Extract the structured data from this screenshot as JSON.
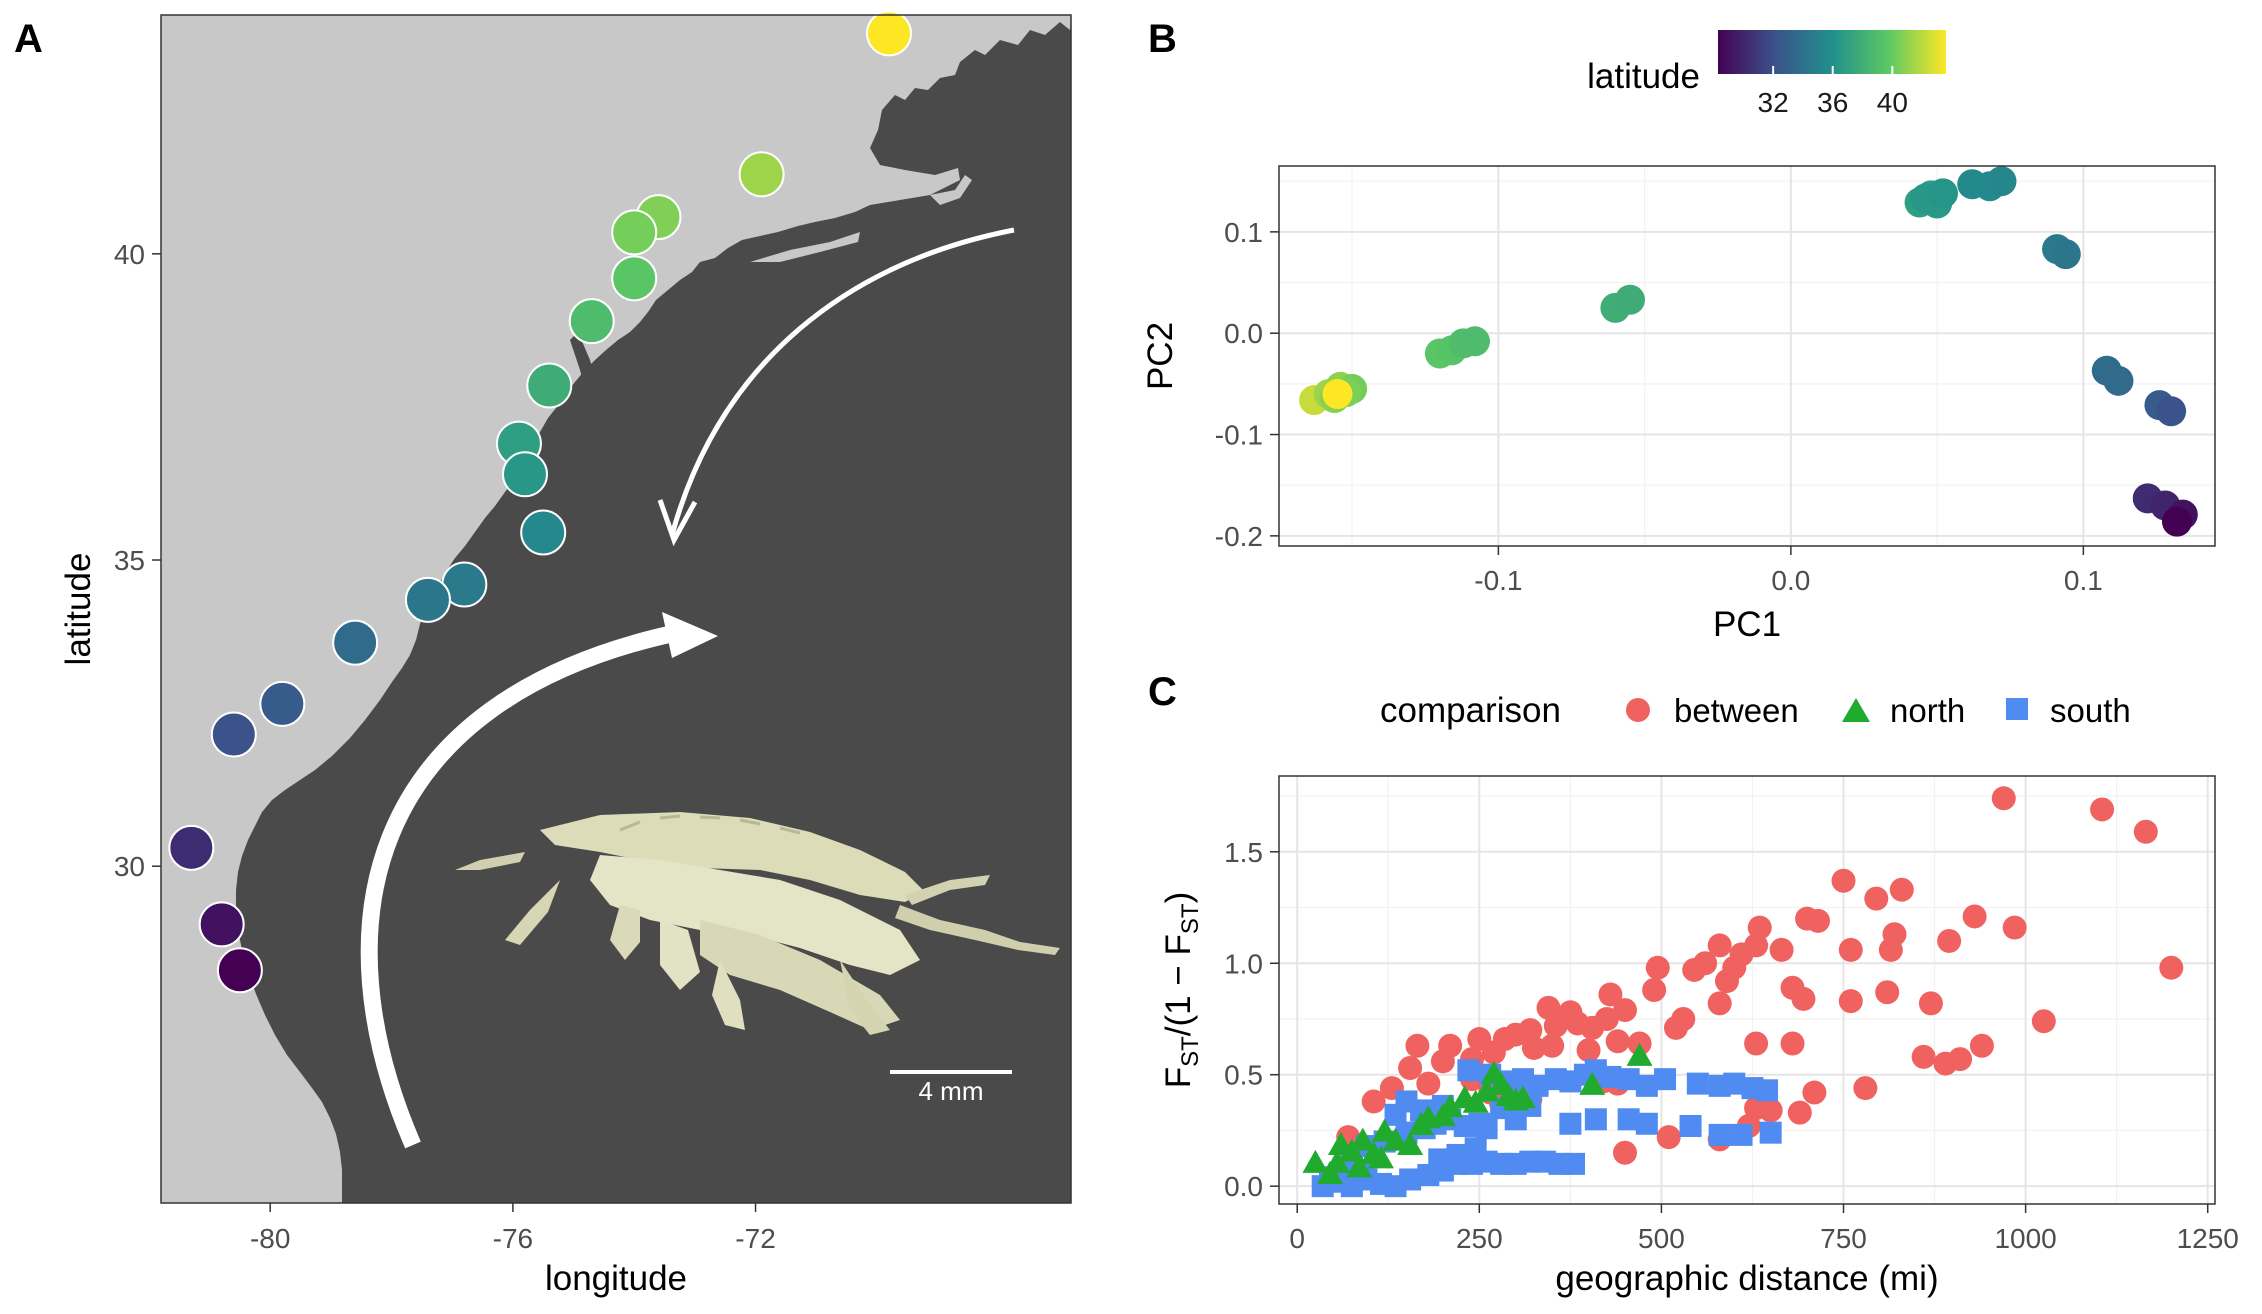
{
  "panels": {
    "a": "A",
    "b": "B",
    "c": "C"
  },
  "colors": {
    "ocean": "#4a4a4a",
    "land": "#c8c8c8",
    "between": "#f0625f",
    "north": "#20ab2e",
    "south": "#4f8bf0",
    "viridis": [
      "#440154",
      "#3b528b",
      "#21908c",
      "#5dc863",
      "#fde725"
    ]
  },
  "scale_bar_label": "4 mm",
  "chart_data": [
    {
      "type": "scatter",
      "panel": "A",
      "xlabel": "longitude",
      "ylabel": "latitude",
      "xlim": [
        -81.8,
        -66.8
      ],
      "ylim": [
        24.5,
        43.9
      ],
      "x_ticks": [
        "-80",
        "-76",
        "-72"
      ],
      "y_ticks": [
        "30",
        "35",
        "40"
      ],
      "points": [
        {
          "x": -69.8,
          "y": 43.6
        },
        {
          "x": -71.9,
          "y": 41.3
        },
        {
          "x": -73.6,
          "y": 40.6
        },
        {
          "x": -74.0,
          "y": 40.35
        },
        {
          "x": -74.0,
          "y": 39.6
        },
        {
          "x": -74.7,
          "y": 38.9
        },
        {
          "x": -75.4,
          "y": 37.85
        },
        {
          "x": -75.9,
          "y": 36.9
        },
        {
          "x": -75.8,
          "y": 36.4
        },
        {
          "x": -75.5,
          "y": 35.45
        },
        {
          "x": -76.8,
          "y": 34.6
        },
        {
          "x": -77.4,
          "y": 34.35
        },
        {
          "x": -78.6,
          "y": 33.65
        },
        {
          "x": -79.8,
          "y": 32.65
        },
        {
          "x": -80.6,
          "y": 32.15
        },
        {
          "x": -81.3,
          "y": 30.3
        },
        {
          "x": -80.8,
          "y": 29.05
        },
        {
          "x": -80.5,
          "y": 28.3
        }
      ]
    },
    {
      "type": "scatter",
      "panel": "B",
      "xlabel": "PC1",
      "ylabel": "PC2",
      "xlim": [
        -0.175,
        0.145
      ],
      "ylim": [
        -0.21,
        0.165
      ],
      "x_ticks": [
        "-0.1",
        "0.0",
        "0.1"
      ],
      "y_ticks": [
        "-0.2",
        "-0.1",
        "0.0",
        "0.1"
      ],
      "legend_title": "latitude",
      "legend_ticks": [
        "32",
        "36",
        "40"
      ],
      "legend_range": [
        28.3,
        43.6
      ],
      "points": [
        {
          "x": -0.163,
          "y": -0.066,
          "lat": 42.3
        },
        {
          "x": -0.158,
          "y": -0.06,
          "lat": 41.3
        },
        {
          "x": -0.154,
          "y": -0.053,
          "lat": 40.9
        },
        {
          "x": -0.15,
          "y": -0.055,
          "lat": 40.3
        },
        {
          "x": -0.156,
          "y": -0.064,
          "lat": 40.8
        },
        {
          "x": -0.152,
          "y": -0.058,
          "lat": 40.5
        },
        {
          "x": -0.155,
          "y": -0.06,
          "lat": 43.6
        },
        {
          "x": -0.12,
          "y": -0.02,
          "lat": 39.6
        },
        {
          "x": -0.116,
          "y": -0.017,
          "lat": 39.4
        },
        {
          "x": -0.112,
          "y": -0.01,
          "lat": 39.0
        },
        {
          "x": -0.108,
          "y": -0.008,
          "lat": 38.9
        },
        {
          "x": -0.06,
          "y": 0.025,
          "lat": 37.9
        },
        {
          "x": -0.055,
          "y": 0.033,
          "lat": 37.85
        },
        {
          "x": 0.044,
          "y": 0.129,
          "lat": 36.9
        },
        {
          "x": 0.048,
          "y": 0.136,
          "lat": 36.7
        },
        {
          "x": 0.05,
          "y": 0.128,
          "lat": 36.5
        },
        {
          "x": 0.046,
          "y": 0.133,
          "lat": 36.4
        },
        {
          "x": 0.052,
          "y": 0.138,
          "lat": 36.2
        },
        {
          "x": 0.062,
          "y": 0.147,
          "lat": 35.6
        },
        {
          "x": 0.068,
          "y": 0.145,
          "lat": 35.5
        },
        {
          "x": 0.072,
          "y": 0.15,
          "lat": 35.4
        },
        {
          "x": 0.091,
          "y": 0.083,
          "lat": 34.6
        },
        {
          "x": 0.094,
          "y": 0.078,
          "lat": 34.35
        },
        {
          "x": 0.108,
          "y": -0.037,
          "lat": 33.65
        },
        {
          "x": 0.112,
          "y": -0.047,
          "lat": 33.6
        },
        {
          "x": 0.126,
          "y": -0.071,
          "lat": 32.65
        },
        {
          "x": 0.13,
          "y": -0.077,
          "lat": 32.15
        },
        {
          "x": 0.122,
          "y": -0.163,
          "lat": 30.3
        },
        {
          "x": 0.128,
          "y": -0.17,
          "lat": 30.0
        },
        {
          "x": 0.134,
          "y": -0.179,
          "lat": 29.05
        },
        {
          "x": 0.132,
          "y": -0.186,
          "lat": 28.3
        }
      ]
    },
    {
      "type": "scatter",
      "panel": "C",
      "xlabel": "geographic distance (mi)",
      "ylabel": "F_ST/(1 − F_ST)",
      "ylabel_parts": {
        "f": "F",
        "st": "ST",
        "middle": "/(1 − ",
        "end": ")"
      },
      "xlim": [
        -25,
        1260
      ],
      "ylim": [
        -0.08,
        1.84
      ],
      "x_ticks": [
        "0",
        "250",
        "500",
        "750",
        "1000",
        "1250"
      ],
      "y_ticks": [
        "0.0",
        "0.5",
        "1.0",
        "1.5"
      ],
      "legend_title": "comparison",
      "series": [
        {
          "name": "between",
          "points": [
            [
              970,
              1.74
            ],
            [
              1105,
              1.69
            ],
            [
              1165,
              1.59
            ],
            [
              1200,
              0.98
            ],
            [
              830,
              1.33
            ],
            [
              750,
              1.37
            ],
            [
              795,
              1.29
            ],
            [
              700,
              1.2
            ],
            [
              715,
              1.19
            ],
            [
              635,
              1.16
            ],
            [
              930,
              1.21
            ],
            [
              985,
              1.16
            ],
            [
              820,
              1.13
            ],
            [
              665,
              1.06
            ],
            [
              630,
              1.08
            ],
            [
              610,
              1.04
            ],
            [
              580,
              1.08
            ],
            [
              560,
              1.0
            ],
            [
              600,
              0.98
            ],
            [
              815,
              1.06
            ],
            [
              760,
              1.06
            ],
            [
              895,
              1.1
            ],
            [
              495,
              0.98
            ],
            [
              490,
              0.88
            ],
            [
              590,
              0.92
            ],
            [
              545,
              0.97
            ],
            [
              680,
              0.89
            ],
            [
              695,
              0.84
            ],
            [
              760,
              0.83
            ],
            [
              810,
              0.87
            ],
            [
              870,
              0.82
            ],
            [
              580,
              0.82
            ],
            [
              450,
              0.79
            ],
            [
              425,
              0.75
            ],
            [
              405,
              0.71
            ],
            [
              375,
              0.78
            ],
            [
              345,
              0.8
            ],
            [
              430,
              0.86
            ],
            [
              385,
              0.73
            ],
            [
              355,
              0.72
            ],
            [
              320,
              0.7
            ],
            [
              300,
              0.68
            ],
            [
              285,
              0.66
            ],
            [
              250,
              0.66
            ],
            [
              210,
              0.63
            ],
            [
              165,
              0.63
            ],
            [
              520,
              0.71
            ],
            [
              530,
              0.75
            ],
            [
              470,
              0.64
            ],
            [
              440,
              0.65
            ],
            [
              400,
              0.61
            ],
            [
              350,
              0.63
            ],
            [
              325,
              0.62
            ],
            [
              270,
              0.6
            ],
            [
              240,
              0.57
            ],
            [
              200,
              0.56
            ],
            [
              155,
              0.53
            ],
            [
              180,
              0.46
            ],
            [
              130,
              0.44
            ],
            [
              240,
              0.48
            ],
            [
              265,
              0.42
            ],
            [
              280,
              0.37
            ],
            [
              320,
              0.39
            ],
            [
              305,
              0.45
            ],
            [
              1025,
              0.74
            ],
            [
              940,
              0.63
            ],
            [
              910,
              0.57
            ],
            [
              860,
              0.58
            ],
            [
              690,
              0.33
            ],
            [
              710,
              0.42
            ],
            [
              780,
              0.44
            ],
            [
              890,
              0.55
            ],
            [
              630,
              0.64
            ],
            [
              680,
              0.64
            ],
            [
              630,
              0.35
            ],
            [
              650,
              0.34
            ],
            [
              620,
              0.27
            ],
            [
              580,
              0.21
            ],
            [
              510,
              0.22
            ],
            [
              450,
              0.15
            ],
            [
              440,
              0.46
            ],
            [
              420,
              0.47
            ],
            [
              105,
              0.38
            ],
            [
              70,
              0.22
            ]
          ]
        },
        {
          "name": "north",
          "points": [
            [
              25,
              0.1
            ],
            [
              45,
              0.05
            ],
            [
              55,
              0.1
            ],
            [
              60,
              0.18
            ],
            [
              75,
              0.15
            ],
            [
              90,
              0.2
            ],
            [
              105,
              0.14
            ],
            [
              120,
              0.24
            ],
            [
              135,
              0.2
            ],
            [
              155,
              0.18
            ],
            [
              170,
              0.27
            ],
            [
              180,
              0.3
            ],
            [
              200,
              0.31
            ],
            [
              210,
              0.35
            ],
            [
              230,
              0.39
            ],
            [
              245,
              0.37
            ],
            [
              260,
              0.42
            ],
            [
              270,
              0.5
            ],
            [
              280,
              0.45
            ],
            [
              290,
              0.4
            ],
            [
              300,
              0.38
            ],
            [
              310,
              0.39
            ],
            [
              405,
              0.45
            ],
            [
              470,
              0.58
            ],
            [
              115,
              0.12
            ],
            [
              85,
              0.08
            ]
          ]
        },
        {
          "name": "south",
          "points": [
            [
              35,
              0.0
            ],
            [
              55,
              0.02
            ],
            [
              75,
              0.0
            ],
            [
              95,
              0.03
            ],
            [
              115,
              0.01
            ],
            [
              135,
              0.0
            ],
            [
              155,
              0.03
            ],
            [
              180,
              0.05
            ],
            [
              200,
              0.07
            ],
            [
              220,
              0.1
            ],
            [
              240,
              0.1
            ],
            [
              260,
              0.11
            ],
            [
              280,
              0.1
            ],
            [
              300,
              0.1
            ],
            [
              320,
              0.11
            ],
            [
              340,
              0.11
            ],
            [
              360,
              0.1
            ],
            [
              380,
              0.1
            ],
            [
              75,
              0.12
            ],
            [
              95,
              0.18
            ],
            [
              120,
              0.2
            ],
            [
              150,
              0.24
            ],
            [
              175,
              0.26
            ],
            [
              190,
              0.28
            ],
            [
              210,
              0.3
            ],
            [
              230,
              0.27
            ],
            [
              250,
              0.28
            ],
            [
              135,
              0.32
            ],
            [
              150,
              0.38
            ],
            [
              170,
              0.34
            ],
            [
              200,
              0.36
            ],
            [
              235,
              0.52
            ],
            [
              265,
              0.5
            ],
            [
              290,
              0.47
            ],
            [
              310,
              0.48
            ],
            [
              330,
              0.45
            ],
            [
              355,
              0.48
            ],
            [
              375,
              0.47
            ],
            [
              395,
              0.5
            ],
            [
              410,
              0.52
            ],
            [
              430,
              0.49
            ],
            [
              455,
              0.48
            ],
            [
              480,
              0.45
            ],
            [
              505,
              0.48
            ],
            [
              550,
              0.46
            ],
            [
              580,
              0.45
            ],
            [
              600,
              0.46
            ],
            [
              625,
              0.44
            ],
            [
              645,
              0.43
            ],
            [
              280,
              0.35
            ],
            [
              300,
              0.3
            ],
            [
              320,
              0.36
            ],
            [
              260,
              0.26
            ],
            [
              245,
              0.17
            ],
            [
              220,
              0.14
            ],
            [
              195,
              0.12
            ],
            [
              375,
              0.28
            ],
            [
              410,
              0.3
            ],
            [
              455,
              0.3
            ],
            [
              480,
              0.28
            ],
            [
              540,
              0.27
            ],
            [
              580,
              0.23
            ],
            [
              650,
              0.24
            ],
            [
              610,
              0.23
            ],
            [
              45,
              0.04
            ],
            [
              65,
              0.08
            ],
            [
              90,
              0.06
            ]
          ]
        }
      ]
    }
  ]
}
